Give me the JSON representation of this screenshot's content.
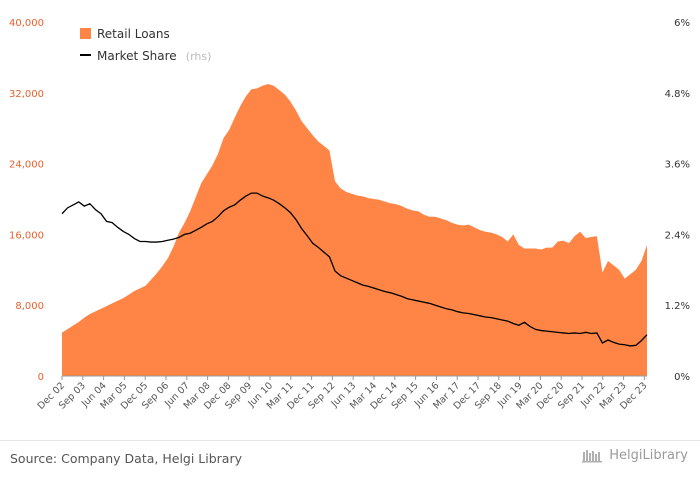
{
  "source": "Source: Company Data, Helgi Library",
  "brand": "HelgiLibrary",
  "colors": {
    "loans": "#ff8547",
    "share": "#000000",
    "left_axis": "#e8602c"
  },
  "chart_data": {
    "type": "area",
    "legend": [
      {
        "label": "Retail Loans",
        "suffix": "",
        "kind": "area"
      },
      {
        "label": "Market Share",
        "suffix": "(rhs)",
        "kind": "line"
      }
    ],
    "legend_position": "top-left",
    "grid": false,
    "x_ticks": [
      "Dec 02",
      "Sep 03",
      "Jun 04",
      "Mar 05",
      "Dec 05",
      "Sep 06",
      "Jun 07",
      "Mar 08",
      "Dec 08",
      "Sep 09",
      "Jun 10",
      "Mar 11",
      "Dec 11",
      "Sep 12",
      "Jun 13",
      "Mar 14",
      "Dec 14",
      "Sep 15",
      "Jun 16",
      "Mar 17",
      "Dec 17",
      "Sep 18",
      "Jun 19",
      "Mar 20",
      "Dec 20",
      "Sep 21",
      "Jun 22",
      "Mar 23",
      "Dec 23"
    ],
    "y_left": {
      "ticks": [
        "0",
        "8,000",
        "16,000",
        "24,000",
        "32,000",
        "40,000"
      ],
      "range": [
        0,
        40000
      ]
    },
    "y_right": {
      "ticks": [
        "0%",
        "1.2%",
        "2.4%",
        "3.6%",
        "4.8%",
        "6%"
      ],
      "range": [
        0,
        6
      ]
    },
    "series": [
      {
        "name": "Retail Loans",
        "axis": "left",
        "type": "area",
        "values": [
          4900,
          5300,
          5700,
          6100,
          6600,
          7000,
          7300,
          7600,
          7900,
          8200,
          8500,
          8800,
          9200,
          9600,
          9900,
          10200,
          10900,
          11600,
          12400,
          13300,
          14600,
          16200,
          17300,
          18600,
          20200,
          21800,
          22800,
          23800,
          25100,
          26900,
          27800,
          29200,
          30500,
          31600,
          32400,
          32500,
          32800,
          33000,
          32800,
          32300,
          31800,
          31000,
          30000,
          28800,
          28000,
          27200,
          26500,
          26000,
          25500,
          22000,
          21200,
          20800,
          20600,
          20400,
          20300,
          20100,
          20000,
          19900,
          19700,
          19500,
          19400,
          19200,
          18900,
          18700,
          18600,
          18200,
          18000,
          18000,
          17800,
          17600,
          17300,
          17100,
          17000,
          17100,
          16800,
          16500,
          16300,
          16200,
          16000,
          15700,
          15200,
          16000,
          14800,
          14400,
          14400,
          14400,
          14300,
          14500,
          14500,
          15200,
          15300,
          15000,
          15800,
          16300,
          15600,
          15700,
          15800,
          11700,
          13000,
          12500,
          12000,
          11000,
          11500,
          12000,
          13000,
          14800
        ],
        "note_length": 106
      },
      {
        "name": "Market Share",
        "axis": "right",
        "type": "line",
        "values": [
          2.75,
          2.85,
          2.9,
          2.95,
          2.88,
          2.92,
          2.82,
          2.75,
          2.62,
          2.6,
          2.52,
          2.45,
          2.4,
          2.33,
          2.28,
          2.28,
          2.27,
          2.27,
          2.28,
          2.3,
          2.32,
          2.35,
          2.4,
          2.42,
          2.47,
          2.52,
          2.58,
          2.62,
          2.7,
          2.8,
          2.86,
          2.9,
          2.98,
          3.05,
          3.1,
          3.1,
          3.05,
          3.02,
          2.98,
          2.92,
          2.85,
          2.77,
          2.65,
          2.5,
          2.38,
          2.25,
          2.18,
          2.1,
          2.02,
          1.78,
          1.7,
          1.66,
          1.62,
          1.58,
          1.54,
          1.52,
          1.49,
          1.46,
          1.43,
          1.41,
          1.38,
          1.35,
          1.31,
          1.29,
          1.27,
          1.25,
          1.23,
          1.2,
          1.17,
          1.14,
          1.12,
          1.09,
          1.07,
          1.06,
          1.04,
          1.02,
          1.0,
          0.99,
          0.97,
          0.95,
          0.93,
          0.89,
          0.86,
          0.91,
          0.84,
          0.79,
          0.77,
          0.76,
          0.75,
          0.74,
          0.73,
          0.72,
          0.73,
          0.72,
          0.74,
          0.72,
          0.73,
          0.56,
          0.61,
          0.57,
          0.54,
          0.53,
          0.51,
          0.52,
          0.6,
          0.7
        ]
      }
    ]
  }
}
